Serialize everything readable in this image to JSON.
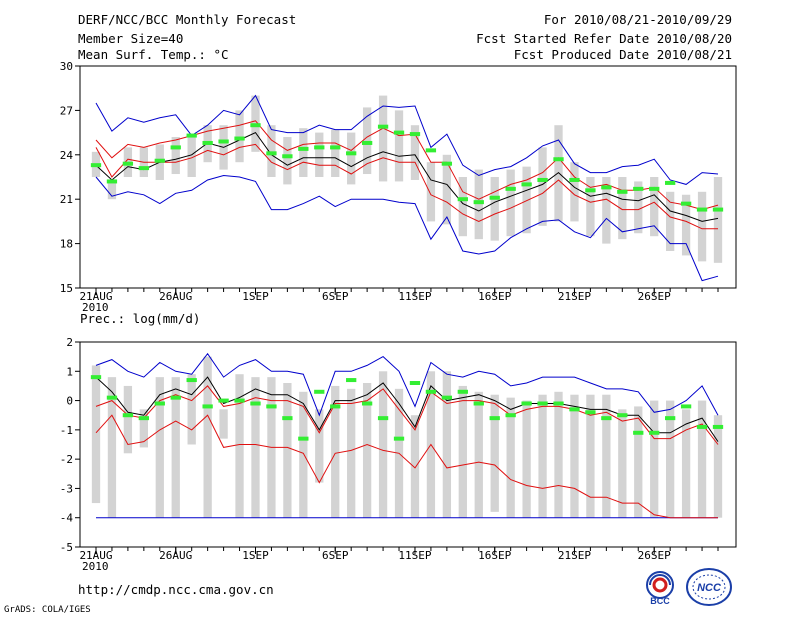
{
  "header": {
    "title": "DERF/NCC/BCC Monthly Forecast",
    "member_size": "Member Size=40",
    "variable": "Mean Surf. Temp.: °C",
    "period": "For 2010/08/21-2010/09/29",
    "start_ref": "Fcst Started Refer Date 2010/08/20",
    "produced": "Fcst Produced Date 2010/08/21"
  },
  "footer": {
    "url": "http://cmdp.ncc.cma.gov.cn",
    "credit": "GrADS: COLA/IGES",
    "logo_left_text": "BCC",
    "logo_right_text": "NCC"
  },
  "colors": {
    "box": "#d3d3d3",
    "median": "#000000",
    "conf": "#e01010",
    "extreme": "#0000cc",
    "obs": "#33ee33"
  },
  "chart_data": [
    {
      "type": "box",
      "name": "temperature",
      "title": "",
      "ylabel": "Mean Surf. Temp.: °C",
      "ylim": [
        15,
        30
      ],
      "yticks": [
        15,
        18,
        21,
        24,
        27,
        30
      ],
      "xlim": [
        0,
        39
      ],
      "xtick_labels": [
        {
          "day": 0,
          "label": "21AUG"
        },
        {
          "day": 5,
          "label": "26AUG"
        },
        {
          "day": 10,
          "label": "1SEP"
        },
        {
          "day": 15,
          "label": "6SEP"
        },
        {
          "day": 20,
          "label": "11SEP"
        },
        {
          "day": 25,
          "label": "16SEP"
        },
        {
          "day": 30,
          "label": "21SEP"
        },
        {
          "day": 35,
          "label": "26SEP"
        }
      ],
      "year_label": "2010",
      "box_low": [
        22.5,
        21.0,
        22.5,
        22.5,
        22.3,
        22.7,
        22.5,
        23.5,
        23.0,
        23.5,
        24.2,
        22.5,
        22.0,
        22.5,
        22.5,
        22.5,
        22.0,
        22.7,
        22.2,
        22.2,
        22.3,
        19.5,
        19.3,
        18.5,
        18.3,
        18.2,
        18.5,
        18.7,
        19.2,
        19.5,
        19.5,
        18.5,
        18.0,
        18.3,
        18.7,
        18.5,
        17.5,
        17.2,
        16.8,
        16.7
      ],
      "box_high": [
        24.2,
        22.2,
        24.5,
        24.5,
        24.7,
        25.2,
        25.3,
        26.0,
        26.0,
        27.0,
        28.0,
        26.0,
        25.2,
        25.8,
        25.5,
        25.7,
        25.5,
        27.2,
        28.0,
        27.0,
        26.0,
        23.5,
        24.0,
        22.5,
        23.0,
        22.5,
        23.0,
        23.2,
        24.5,
        26.0,
        23.5,
        22.5,
        22.5,
        22.5,
        22.2,
        22.5,
        21.5,
        21.3,
        21.5,
        22.5
      ],
      "median": [
        23.3,
        22.3,
        23.2,
        23.0,
        23.5,
        23.7,
        24.0,
        24.8,
        24.5,
        25.0,
        25.5,
        24.0,
        23.3,
        23.8,
        23.8,
        23.8,
        23.2,
        23.8,
        24.2,
        23.9,
        24.0,
        22.3,
        22.0,
        20.7,
        20.2,
        20.8,
        21.2,
        21.6,
        22.0,
        22.8,
        21.8,
        21.2,
        21.4,
        21.0,
        20.9,
        21.3,
        20.2,
        19.9,
        19.5,
        19.7
      ],
      "conf_high": [
        25.0,
        23.8,
        24.7,
        24.5,
        24.8,
        25.0,
        25.3,
        25.6,
        25.8,
        26.0,
        26.3,
        25.0,
        24.3,
        24.7,
        24.8,
        24.8,
        24.3,
        25.2,
        25.8,
        25.3,
        25.4,
        23.5,
        23.5,
        21.5,
        21.0,
        21.5,
        22.0,
        22.3,
        22.8,
        23.8,
        22.5,
        21.8,
        22.0,
        21.6,
        21.6,
        21.8,
        20.8,
        20.6,
        20.3,
        20.6
      ],
      "conf_low": [
        24.5,
        22.5,
        23.7,
        23.5,
        23.5,
        23.5,
        23.8,
        24.3,
        24.0,
        24.5,
        24.7,
        23.5,
        23.0,
        23.5,
        23.3,
        23.3,
        22.7,
        23.4,
        23.8,
        23.5,
        23.5,
        21.3,
        20.8,
        20.0,
        19.5,
        20.0,
        20.4,
        20.9,
        21.4,
        22.3,
        21.3,
        20.8,
        21.0,
        20.3,
        20.3,
        20.8,
        19.8,
        19.5,
        19.0,
        19.0
      ],
      "ext_high": [
        27.5,
        25.6,
        26.5,
        26.2,
        26.5,
        26.7,
        25.3,
        26.0,
        27.0,
        26.7,
        28.0,
        25.7,
        25.5,
        25.5,
        26.0,
        25.7,
        25.7,
        26.6,
        27.3,
        27.2,
        27.3,
        24.5,
        25.4,
        23.3,
        22.6,
        23.0,
        23.2,
        23.8,
        24.6,
        25.0,
        23.4,
        22.8,
        22.8,
        23.2,
        23.3,
        23.7,
        22.3,
        22.0,
        22.8,
        22.7
      ],
      "ext_low": [
        22.5,
        21.2,
        21.5,
        21.3,
        20.7,
        21.4,
        21.6,
        22.3,
        22.6,
        22.5,
        22.2,
        20.3,
        20.3,
        20.7,
        21.2,
        20.5,
        21.0,
        21.0,
        21.0,
        20.8,
        20.7,
        18.3,
        19.8,
        17.5,
        17.3,
        17.5,
        18.4,
        19.0,
        19.5,
        19.6,
        18.8,
        18.4,
        19.7,
        18.8,
        19.0,
        19.2,
        18.0,
        18.0,
        15.5,
        15.8
      ],
      "observed": [
        23.3,
        22.2,
        23.4,
        23.1,
        23.6,
        24.5,
        25.3,
        24.8,
        24.9,
        25.1,
        26.0,
        24.1,
        23.9,
        24.4,
        24.5,
        24.5,
        24.1,
        24.8,
        25.9,
        25.5,
        25.4,
        24.3,
        23.4,
        21.0,
        20.8,
        21.1,
        21.7,
        22.0,
        22.3,
        23.7,
        22.3,
        21.6,
        21.8,
        21.5,
        21.7,
        21.7,
        22.1,
        20.7,
        20.3,
        20.3
      ]
    },
    {
      "type": "box",
      "name": "precipitation",
      "title": "",
      "ylabel": "Prec.: log(mm/d)",
      "ylim": [
        -5,
        2
      ],
      "yticks": [
        -5,
        -4,
        -3,
        -2,
        -1,
        0,
        1,
        2
      ],
      "xlim": [
        0,
        39
      ],
      "xtick_labels": [
        {
          "day": 0,
          "label": "21AUG"
        },
        {
          "day": 5,
          "label": "26AUG"
        },
        {
          "day": 10,
          "label": "1SEP"
        },
        {
          "day": 15,
          "label": "6SEP"
        },
        {
          "day": 20,
          "label": "11SEP"
        },
        {
          "day": 25,
          "label": "16SEP"
        },
        {
          "day": 30,
          "label": "21SEP"
        },
        {
          "day": 35,
          "label": "26SEP"
        }
      ],
      "year_label": "2010",
      "box_low": [
        -3.5,
        -4.0,
        -1.8,
        -1.6,
        -4.0,
        -4.0,
        -1.5,
        -4.0,
        -1.3,
        -4.0,
        -4.0,
        -4.0,
        -4.0,
        -4.0,
        -2.8,
        -4.0,
        -4.0,
        -4.0,
        -4.0,
        -4.0,
        -4.0,
        -4.0,
        -4.0,
        -4.0,
        -4.0,
        -3.8,
        -4.0,
        -4.0,
        -4.0,
        -4.0,
        -4.0,
        -4.0,
        -4.0,
        -4.0,
        -4.0,
        -4.0,
        -4.0,
        -4.0,
        -4.0,
        -4.0
      ],
      "box_high": [
        1.2,
        0.8,
        0.5,
        -0.3,
        0.8,
        0.8,
        0.9,
        1.5,
        -0.3,
        0.9,
        0.8,
        0.8,
        0.6,
        0.3,
        -0.3,
        0.5,
        0.4,
        0.6,
        1.0,
        0.4,
        -0.5,
        1.0,
        1.0,
        0.5,
        0.3,
        0.2,
        0.1,
        0.0,
        0.2,
        0.3,
        0.2,
        0.2,
        0.2,
        -0.3,
        -0.2,
        0.0,
        0.0,
        -0.3,
        0.0,
        -0.5
      ],
      "median": [
        0.8,
        0.3,
        -0.4,
        -0.5,
        0.2,
        0.4,
        0.2,
        0.8,
        -0.1,
        0.1,
        0.4,
        0.2,
        0.2,
        -0.1,
        -1.0,
        0.0,
        0.0,
        0.2,
        0.6,
        -0.1,
        -0.9,
        0.5,
        0.0,
        0.1,
        0.2,
        0.0,
        -0.3,
        -0.1,
        -0.1,
        -0.1,
        -0.2,
        -0.3,
        -0.3,
        -0.5,
        -0.5,
        -1.1,
        -1.1,
        -0.8,
        -0.6,
        -1.4
      ],
      "conf_high": [
        -0.2,
        0.0,
        -0.5,
        -0.6,
        0.0,
        0.2,
        0.0,
        0.5,
        -0.2,
        -0.1,
        0.1,
        0.0,
        0.0,
        -0.2,
        -1.1,
        -0.1,
        -0.1,
        0.0,
        0.4,
        -0.3,
        -1.0,
        0.3,
        -0.1,
        0.0,
        0.0,
        -0.1,
        -0.5,
        -0.3,
        -0.2,
        -0.2,
        -0.3,
        -0.5,
        -0.4,
        -0.7,
        -0.6,
        -1.3,
        -1.3,
        -1.0,
        -0.8,
        -1.5
      ],
      "conf_low": [
        -1.1,
        -0.5,
        -1.5,
        -1.4,
        -1.0,
        -0.7,
        -1.0,
        -0.5,
        -1.6,
        -1.5,
        -1.5,
        -1.6,
        -1.6,
        -1.8,
        -2.8,
        -1.8,
        -1.7,
        -1.5,
        -1.7,
        -1.8,
        -2.3,
        -1.5,
        -2.3,
        -2.2,
        -2.1,
        -2.2,
        -2.7,
        -2.9,
        -3.0,
        -2.9,
        -3.0,
        -3.3,
        -3.3,
        -3.5,
        -3.5,
        -3.9,
        -4.0,
        -4.0,
        -4.0,
        -4.0
      ],
      "ext_high": [
        1.2,
        1.4,
        1.0,
        0.8,
        1.3,
        1.0,
        0.9,
        1.6,
        0.8,
        1.2,
        1.4,
        1.0,
        1.0,
        0.9,
        -0.5,
        1.0,
        1.0,
        1.2,
        1.5,
        1.0,
        -0.2,
        1.3,
        0.9,
        0.8,
        1.0,
        0.9,
        0.5,
        0.6,
        0.8,
        0.8,
        0.8,
        0.6,
        0.4,
        0.4,
        0.3,
        -0.4,
        -0.3,
        0.0,
        0.5,
        -0.5
      ],
      "ext_low": [
        -4.0,
        -4.0,
        -4.0,
        -4.0,
        -4.0,
        -4.0,
        -4.0,
        -4.0,
        -4.0,
        -4.0,
        -4.0,
        -4.0,
        -4.0,
        -4.0,
        -4.0,
        -4.0,
        -4.0,
        -4.0,
        -4.0,
        -4.0,
        -4.0,
        -4.0,
        -4.0,
        -4.0,
        -4.0,
        -4.0,
        -4.0,
        -4.0,
        -4.0,
        -4.0,
        -4.0,
        -4.0,
        -4.0,
        -4.0,
        -4.0,
        -4.0,
        -4.0,
        -4.0,
        -4.0,
        -4.0
      ],
      "observed": [
        0.8,
        0.1,
        -0.5,
        -0.6,
        -0.1,
        0.1,
        0.7,
        -0.2,
        0.0,
        0.0,
        -0.1,
        -0.2,
        -0.6,
        -1.3,
        0.3,
        -0.2,
        0.7,
        -0.1,
        -0.6,
        -1.3,
        0.6,
        0.3,
        0.1,
        0.3,
        -0.1,
        -0.6,
        -0.5,
        -0.1,
        -0.1,
        -0.1,
        -0.3,
        -0.4,
        -0.6,
        -0.5,
        -1.1,
        -1.1,
        -0.6,
        -0.2,
        -0.9,
        -0.9
      ]
    }
  ]
}
